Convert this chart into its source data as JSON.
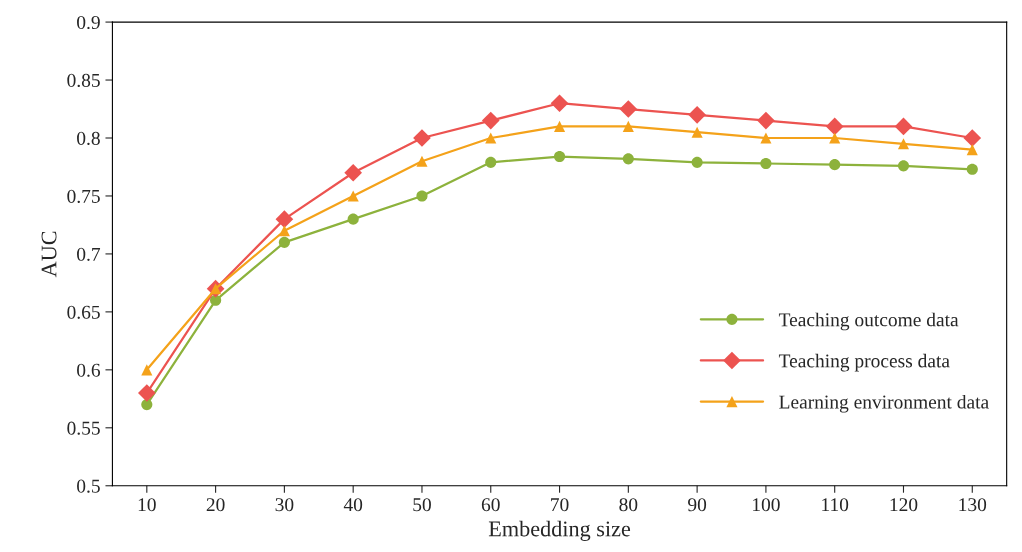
{
  "chart_data": {
    "type": "line",
    "xlabel": "Embedding size",
    "ylabel": "AUC",
    "categories": [
      "10",
      "20",
      "30",
      "40",
      "50",
      "60",
      "70",
      "80",
      "90",
      "100",
      "110",
      "120",
      "130"
    ],
    "series": [
      {
        "name": "Teaching outcome data",
        "color": "#8db23c",
        "marker": "circle",
        "values": [
          0.57,
          0.66,
          0.71,
          0.73,
          0.75,
          0.779,
          0.784,
          0.782,
          0.779,
          0.778,
          0.777,
          0.776,
          0.773
        ]
      },
      {
        "name": "Teaching process data",
        "color": "#ec5350",
        "marker": "diamond",
        "values": [
          0.58,
          0.67,
          0.73,
          0.77,
          0.8,
          0.815,
          0.83,
          0.825,
          0.82,
          0.815,
          0.81,
          0.81,
          0.8
        ]
      },
      {
        "name": "Learning environment data",
        "color": "#f4a21a",
        "marker": "triangle",
        "values": [
          0.6,
          0.67,
          0.72,
          0.75,
          0.78,
          0.8,
          0.81,
          0.81,
          0.805,
          0.8,
          0.8,
          0.795,
          0.79
        ]
      }
    ],
    "ylim": [
      0.5,
      0.9
    ],
    "yticks": [
      0.5,
      0.55,
      0.6,
      0.65,
      0.7,
      0.75,
      0.8,
      0.85,
      0.9
    ],
    "grid": false,
    "legend": "bottom right",
    "line_style": "solid"
  }
}
